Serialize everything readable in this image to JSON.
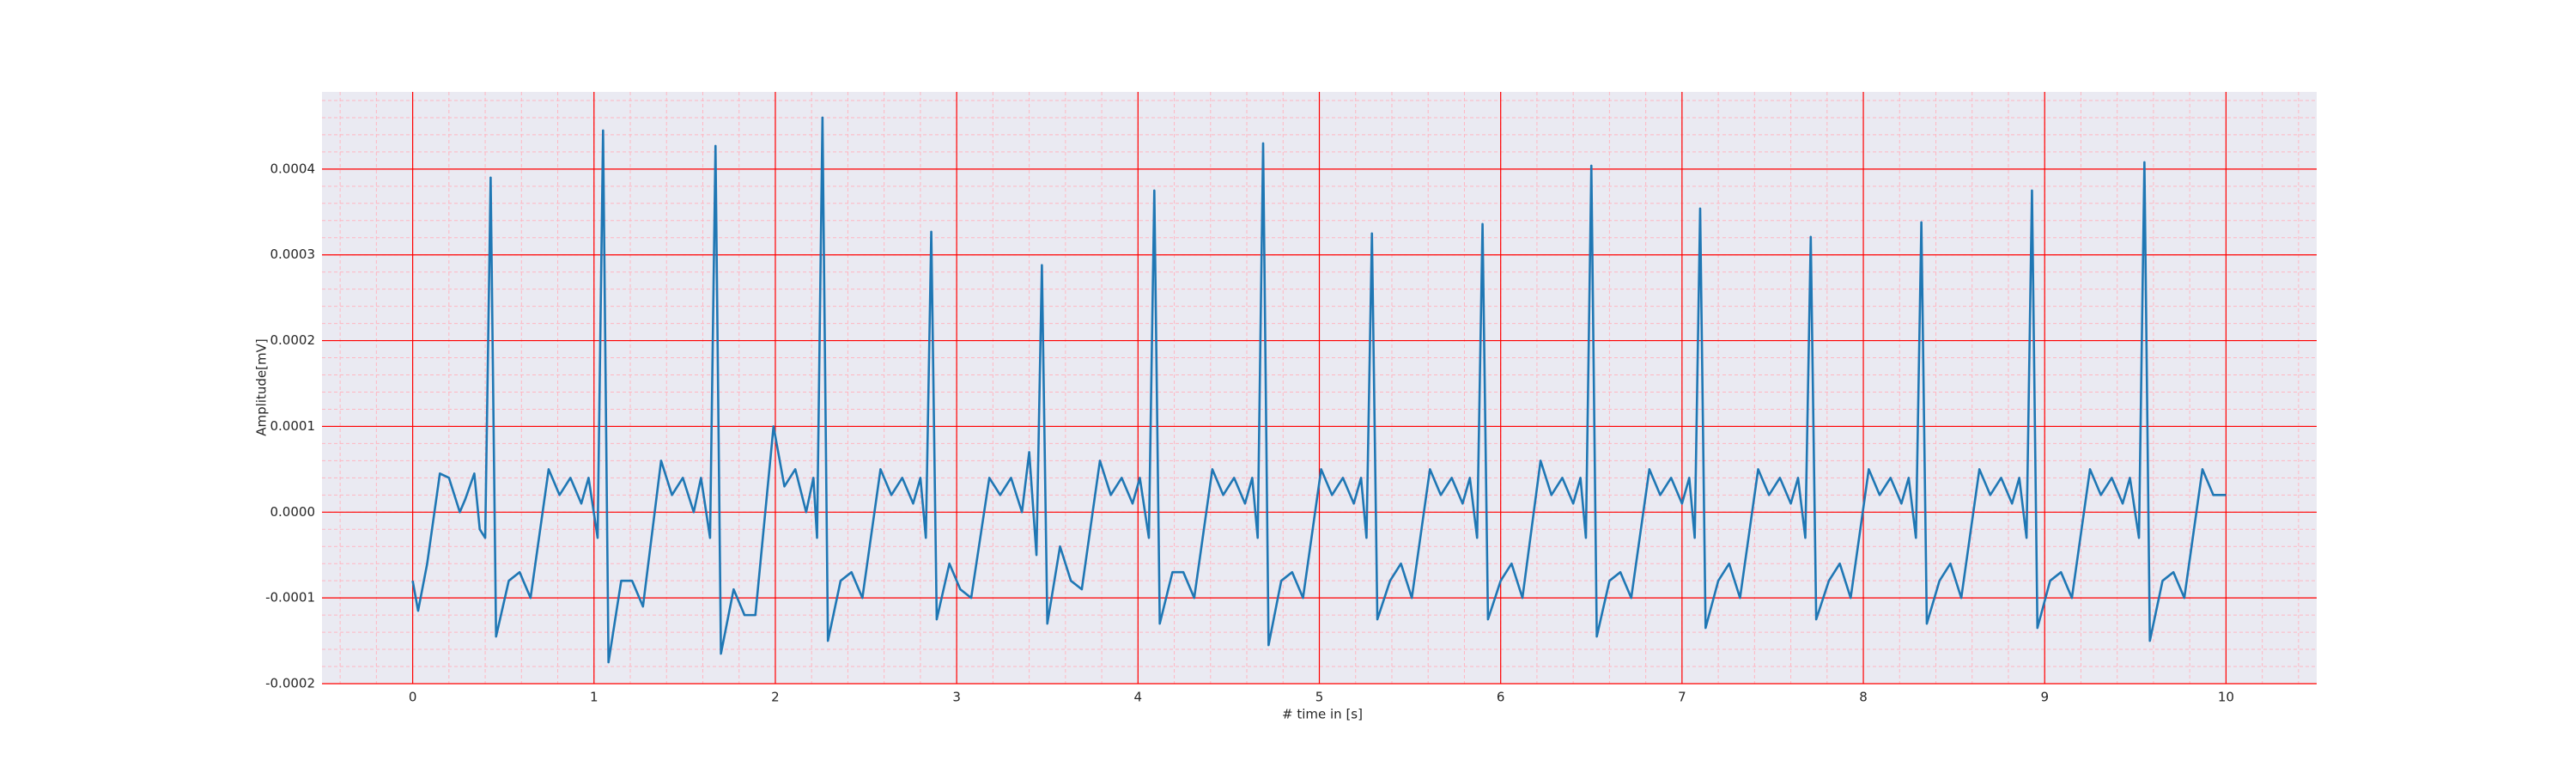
{
  "chart_data": {
    "type": "line",
    "xlabel": "# time in [s]",
    "ylabel": "Amplitude[mV]",
    "xlim": [
      -0.5,
      10.5
    ],
    "ylim": [
      -0.0002,
      0.00049
    ],
    "xticks": [
      0,
      1,
      2,
      3,
      4,
      5,
      6,
      7,
      8,
      9,
      10
    ],
    "yticks": [
      -0.0002,
      -0.0001,
      {
        "value": 0,
        "label": "0.0000"
      },
      0.0001,
      0.0002,
      0.0003,
      0.0004
    ],
    "grid": true,
    "grid_color": "#ff0000",
    "minor_grid": {
      "x": 0.2,
      "y": 2e-05,
      "color": "#ffb6c1"
    },
    "background": "#eaeaf2",
    "x": [
      0,
      0.03,
      0.08,
      0.15,
      0.2,
      0.26,
      0.29,
      0.34,
      0.37,
      0.4,
      0.43,
      0.46,
      0.53,
      0.59,
      0.65,
      0.75,
      0.81,
      0.87,
      0.93,
      0.97,
      1.02,
      1.05,
      1.08,
      1.15,
      1.21,
      1.27,
      1.37,
      1.43,
      1.49,
      1.55,
      1.59,
      1.64,
      1.67,
      1.7,
      1.77,
      1.83,
      1.89,
      1.99,
      2.05,
      2.11,
      2.17,
      2.21,
      2.23,
      2.26,
      2.29,
      2.36,
      2.42,
      2.48,
      2.58,
      2.64,
      2.7,
      2.76,
      2.8,
      2.83,
      2.86,
      2.89,
      2.96,
      3.02,
      3.08,
      3.18,
      3.24,
      3.3,
      3.36,
      3.4,
      3.44,
      3.47,
      3.5,
      3.57,
      3.63,
      3.69,
      3.79,
      3.85,
      3.91,
      3.97,
      4.01,
      4.06,
      4.09,
      4.12,
      4.19,
      4.25,
      4.31,
      4.41,
      4.47,
      4.53,
      4.59,
      4.63,
      4.66,
      4.69,
      4.72,
      4.79,
      4.85,
      4.91,
      5.01,
      5.07,
      5.13,
      5.19,
      5.23,
      5.26,
      5.29,
      5.32,
      5.39,
      5.45,
      5.51,
      5.61,
      5.67,
      5.73,
      5.79,
      5.83,
      5.87,
      5.9,
      5.93,
      6.0,
      6.06,
      6.12,
      6.22,
      6.28,
      6.34,
      6.4,
      6.44,
      6.47,
      6.5,
      6.53,
      6.6,
      6.66,
      6.72,
      6.82,
      6.88,
      6.94,
      7.0,
      7.04,
      7.07,
      7.1,
      7.13,
      7.2,
      7.26,
      7.32,
      7.42,
      7.48,
      7.54,
      7.6,
      7.64,
      7.68,
      7.71,
      7.74,
      7.81,
      7.87,
      7.93,
      8.03,
      8.09,
      8.15,
      8.21,
      8.25,
      8.29,
      8.32,
      8.35,
      8.42,
      8.48,
      8.54,
      8.64,
      8.7,
      8.76,
      8.82,
      8.86,
      8.9,
      8.93,
      8.96,
      9.03,
      9.09,
      9.15,
      9.25,
      9.31,
      9.37,
      9.43,
      9.47,
      9.52,
      9.55,
      9.58,
      9.65,
      9.71,
      9.77,
      9.87,
      9.93,
      10.0
    ],
    "series": [
      {
        "color": "#1f77b4",
        "values": [
          -8e-05,
          -0.000115,
          -6e-05,
          4.5e-05,
          4e-05,
          0.0,
          1.5e-05,
          4.5e-05,
          -2e-05,
          -3e-05,
          0.00039,
          -0.000145,
          -8e-05,
          -7e-05,
          -0.0001,
          5e-05,
          2e-05,
          4e-05,
          1e-05,
          4e-05,
          -3e-05,
          0.000445,
          -0.000175,
          -8e-05,
          -8e-05,
          -0.00011,
          6e-05,
          2e-05,
          4e-05,
          0.0,
          4e-05,
          -3e-05,
          0.000427,
          -0.000165,
          -9e-05,
          -0.00012,
          -0.00012,
          0.0001,
          3e-05,
          5e-05,
          0.0,
          4e-05,
          -3e-05,
          0.00046,
          -0.00015,
          -8e-05,
          -7e-05,
          -0.0001,
          5e-05,
          2e-05,
          4e-05,
          1e-05,
          4e-05,
          -3e-05,
          0.000327,
          -0.000125,
          -6e-05,
          -9e-05,
          -0.0001,
          4e-05,
          2e-05,
          4e-05,
          0.0,
          7e-05,
          -5e-05,
          0.000288,
          -0.00013,
          -4e-05,
          -8e-05,
          -9e-05,
          6e-05,
          2e-05,
          4e-05,
          1e-05,
          4e-05,
          -3e-05,
          0.000375,
          -0.00013,
          -7e-05,
          -7e-05,
          -0.0001,
          5e-05,
          2e-05,
          4e-05,
          1e-05,
          4e-05,
          -3e-05,
          0.00043,
          -0.000155,
          -8e-05,
          -7e-05,
          -0.0001,
          5e-05,
          2e-05,
          4e-05,
          1e-05,
          4e-05,
          -3e-05,
          0.000325,
          -0.000125,
          -8e-05,
          -6e-05,
          -0.0001,
          5e-05,
          2e-05,
          4e-05,
          1e-05,
          4e-05,
          -3e-05,
          0.000336,
          -0.000125,
          -8e-05,
          -6e-05,
          -0.0001,
          6e-05,
          2e-05,
          4e-05,
          1e-05,
          4e-05,
          -3e-05,
          0.000404,
          -0.000145,
          -8e-05,
          -7e-05,
          -0.0001,
          5e-05,
          2e-05,
          4e-05,
          1e-05,
          4e-05,
          -3e-05,
          0.000354,
          -0.000135,
          -8e-05,
          -6e-05,
          -0.0001,
          5e-05,
          2e-05,
          4e-05,
          1e-05,
          4e-05,
          -3e-05,
          0.000321,
          -0.000125,
          -8e-05,
          -6e-05,
          -0.0001,
          5e-05,
          2e-05,
          4e-05,
          1e-05,
          4e-05,
          -3e-05,
          0.000338,
          -0.00013,
          -8e-05,
          -6e-05,
          -0.0001,
          5e-05,
          2e-05,
          4e-05,
          1e-05,
          4e-05,
          -3e-05,
          0.000375,
          -0.000135,
          -8e-05,
          -7e-05,
          -0.0001,
          5e-05,
          2e-05,
          4e-05,
          1e-05,
          4e-05,
          -3e-05,
          0.000408,
          -0.00015,
          -8e-05,
          -7e-05,
          -0.0001,
          5e-05,
          2e-05,
          2e-05
        ]
      }
    ]
  }
}
